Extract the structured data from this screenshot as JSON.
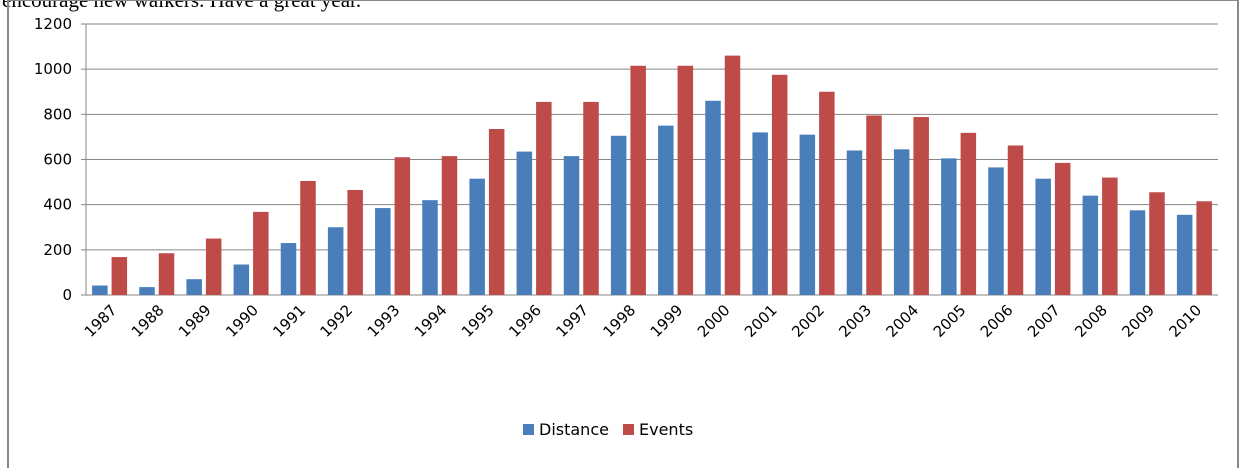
{
  "header_text": "encourage new walkers. Have a great year.",
  "colors": {
    "distance": "#4a7ebb",
    "events": "#be4b48",
    "grid": "#868686"
  },
  "chart_data": {
    "type": "bar",
    "title": "",
    "xlabel": "",
    "ylabel": "",
    "ylim": [
      0,
      1200
    ],
    "y_ticks": [
      0,
      200,
      400,
      600,
      800,
      1000,
      1200
    ],
    "grid": true,
    "legend_position": "bottom",
    "categories": [
      "1987",
      "1988",
      "1989",
      "1990",
      "1991",
      "1992",
      "1993",
      "1994",
      "1995",
      "1996",
      "1997",
      "1998",
      "1999",
      "2000",
      "2001",
      "2002",
      "2003",
      "2004",
      "2005",
      "2006",
      "2007",
      "2008",
      "2009",
      "2010"
    ],
    "series": [
      {
        "name": "Distance",
        "values": [
          42,
          35,
          70,
          135,
          230,
          300,
          385,
          420,
          515,
          635,
          615,
          705,
          750,
          860,
          720,
          710,
          640,
          645,
          605,
          565,
          515,
          440,
          375,
          355
        ]
      },
      {
        "name": "Events",
        "values": [
          168,
          185,
          250,
          368,
          505,
          465,
          610,
          615,
          735,
          855,
          855,
          1015,
          1015,
          1060,
          975,
          900,
          795,
          788,
          718,
          662,
          585,
          520,
          455,
          415
        ]
      }
    ]
  }
}
